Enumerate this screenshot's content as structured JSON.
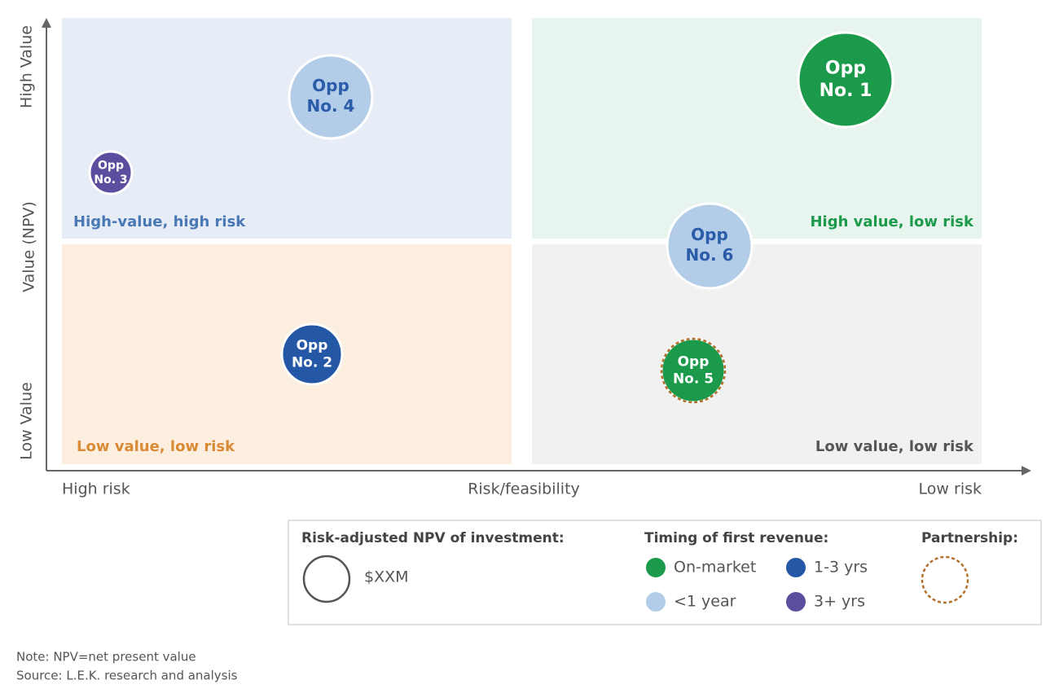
{
  "axes": {
    "y_high": "High Value",
    "y_label": "Value (NPV)",
    "y_low": "Low Value",
    "x_low": "High risk",
    "x_label": "Risk/feasibility",
    "x_high": "Low risk"
  },
  "quadrants": [
    {
      "label": "High-value, high risk",
      "color": "#e6edf7",
      "label_color": "#4a78b5"
    },
    {
      "label": "High value, low risk",
      "color": "#e8f5ee",
      "label_color": "#1a9a4a"
    },
    {
      "label": "Low value, low risk",
      "color": "#fcefdf",
      "label_color": "#d98a35"
    },
    {
      "label": "Low value, low risk",
      "color": "#f1f1f1",
      "label_color": "#555555"
    }
  ],
  "bubbles": [
    {
      "lines": [
        "Opp",
        "No. 1"
      ],
      "color": "#1a9a4a",
      "text_color": "#ffffff"
    },
    {
      "lines": [
        "Opp",
        "No. 2"
      ],
      "color": "#2457a5",
      "text_color": "#ffffff"
    },
    {
      "lines": [
        "Opp",
        "No. 3"
      ],
      "color": "#5c4d9e",
      "text_color": "#ffffff"
    },
    {
      "lines": [
        "Opp",
        "No. 4"
      ],
      "color": "#b3cde9",
      "text_color": "#2a5caa"
    },
    {
      "lines": [
        "Opp",
        "No. 5"
      ],
      "color": "#1a9a4a",
      "text_color": "#ffffff",
      "partnership": true
    },
    {
      "lines": [
        "Opp",
        "No. 6"
      ],
      "color": "#b3cde9",
      "text_color": "#2a5caa"
    }
  ],
  "legend": {
    "size_title": "Risk-adjusted NPV of investment:",
    "size_label": "$XXM",
    "timing_title": "Timing of first revenue:",
    "timing": [
      {
        "label": "On-market",
        "color": "#1a9a4a"
      },
      {
        "label": "1-3 yrs",
        "color": "#2457a5"
      },
      {
        "label": "<1 year",
        "color": "#b3cde9"
      },
      {
        "label": "3+ yrs",
        "color": "#5c4d9e"
      }
    ],
    "partnership_title": "Partnership:",
    "partnership_color": "#b06f2a"
  },
  "notes": [
    "Note: NPV=net present value",
    "Source: L.E.K. research and analysis"
  ]
}
